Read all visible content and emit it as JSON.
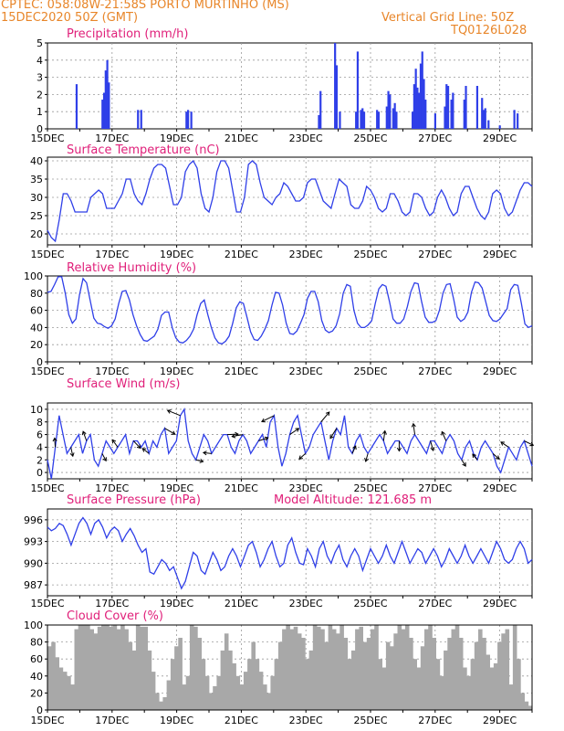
{
  "header": {
    "line1_left": "CPTEC:   058:08W-21:58S   PORTO MURTINHO (MS)",
    "line2_left": "15DEC2020 50Z (GMT)",
    "line2_right": "Vertical Grid Line: 50Z",
    "line3_right": "TQ0126L028",
    "accent_color": "#e8862a"
  },
  "colors": {
    "series": "#2f3fe8",
    "title": "#e0207a",
    "cloud": "#a8a8a8",
    "grid": "#9a9a9a",
    "wind_arrow": "#000000"
  },
  "x_tick_labels": [
    "15DEC",
    "17DEC",
    "19DEC",
    "21DEC",
    "23DEC",
    "25DEC",
    "27DEC",
    "29DEC"
  ],
  "chart_data": [
    {
      "type": "bar",
      "title": "Precipitation (mm/h)",
      "ylim": [
        0,
        5
      ],
      "yticks": [
        0,
        1,
        2,
        3,
        4,
        5
      ],
      "x_unit": "days since 15DEC 00Z",
      "series": [
        {
          "values": [
            [
              0.9,
              2.6
            ],
            [
              1.7,
              1.7
            ],
            [
              1.75,
              2.1
            ],
            [
              1.8,
              3.4
            ],
            [
              1.85,
              4.0
            ],
            [
              1.9,
              2.7
            ],
            [
              2.8,
              1.1
            ],
            [
              2.9,
              1.1
            ],
            [
              4.3,
              1.0
            ],
            [
              4.35,
              1.1
            ],
            [
              4.45,
              1.0
            ],
            [
              8.4,
              0.8
            ],
            [
              8.45,
              2.2
            ],
            [
              8.9,
              5.0
            ],
            [
              8.95,
              3.7
            ],
            [
              9.05,
              1.0
            ],
            [
              9.55,
              1.0
            ],
            [
              9.6,
              4.5
            ],
            [
              9.7,
              1.1
            ],
            [
              9.75,
              1.2
            ],
            [
              9.8,
              1.0
            ],
            [
              10.2,
              1.1
            ],
            [
              10.25,
              1.0
            ],
            [
              10.5,
              1.3
            ],
            [
              10.55,
              2.2
            ],
            [
              10.6,
              2.0
            ],
            [
              10.7,
              1.2
            ],
            [
              10.75,
              1.5
            ],
            [
              10.8,
              1.0
            ],
            [
              11.3,
              1.0
            ],
            [
              11.35,
              2.6
            ],
            [
              11.4,
              3.5
            ],
            [
              11.45,
              2.4
            ],
            [
              11.5,
              2.1
            ],
            [
              11.55,
              3.8
            ],
            [
              11.6,
              4.5
            ],
            [
              11.65,
              2.9
            ],
            [
              11.7,
              1.7
            ],
            [
              12.0,
              0.9
            ],
            [
              12.3,
              1.3
            ],
            [
              12.35,
              2.6
            ],
            [
              12.4,
              2.5
            ],
            [
              12.5,
              1.7
            ],
            [
              12.55,
              2.1
            ],
            [
              12.9,
              1.7
            ],
            [
              12.95,
              2.5
            ],
            [
              13.3,
              2.5
            ],
            [
              13.45,
              1.8
            ],
            [
              13.5,
              1.1
            ],
            [
              13.55,
              1.2
            ],
            [
              13.65,
              0.5
            ],
            [
              14.0,
              0.2
            ],
            [
              14.45,
              1.1
            ],
            [
              14.55,
              0.9
            ]
          ]
        }
      ]
    },
    {
      "type": "line",
      "title": "Surface Temperature (nC)",
      "ylim": [
        17,
        41
      ],
      "yticks": [
        20,
        25,
        30,
        35,
        40
      ],
      "series": [
        {
          "values": [
            21,
            19,
            18,
            24,
            31,
            31,
            29,
            26,
            26,
            26,
            26,
            30,
            31,
            32,
            31,
            27,
            27,
            27,
            29,
            31,
            35,
            35,
            31,
            29,
            28,
            31,
            35,
            38,
            39,
            39,
            38,
            33,
            28,
            28,
            30,
            37,
            39,
            40,
            38,
            31,
            27,
            26,
            30,
            37,
            40,
            40,
            38,
            32,
            26,
            26,
            30,
            39,
            40,
            39,
            34,
            30,
            29,
            28,
            30,
            31,
            34,
            33,
            31,
            29,
            29,
            30,
            34,
            35,
            35,
            32,
            29,
            28,
            27,
            31,
            35,
            34,
            33,
            28,
            27,
            27,
            29,
            33,
            32,
            30,
            27,
            26,
            27,
            31,
            31,
            29,
            26,
            25,
            26,
            31,
            31,
            30,
            27,
            25,
            26,
            30,
            32,
            30,
            27,
            25,
            26,
            31,
            33,
            33,
            30,
            27,
            25,
            24,
            26,
            31,
            32,
            31,
            27,
            25,
            26,
            29,
            32,
            34,
            34,
            33
          ]
        }
      ]
    },
    {
      "type": "line",
      "title": "Relative Humidity (%)",
      "ylim": [
        0,
        100
      ],
      "yticks": [
        0,
        20,
        40,
        60,
        80,
        100
      ],
      "series": [
        {
          "values": [
            81,
            82,
            90,
            99,
            99,
            80,
            55,
            45,
            50,
            78,
            97,
            92,
            71,
            51,
            45,
            44,
            41,
            39,
            42,
            50,
            68,
            82,
            83,
            72,
            55,
            42,
            32,
            25,
            24,
            27,
            30,
            38,
            54,
            58,
            58,
            40,
            28,
            23,
            22,
            25,
            30,
            38,
            55,
            68,
            72,
            55,
            40,
            28,
            22,
            21,
            24,
            30,
            45,
            63,
            70,
            68,
            52,
            35,
            26,
            25,
            30,
            38,
            48,
            66,
            81,
            80,
            66,
            45,
            33,
            32,
            36,
            45,
            55,
            74,
            82,
            82,
            70,
            48,
            37,
            34,
            36,
            42,
            56,
            80,
            90,
            88,
            60,
            45,
            40,
            40,
            43,
            48,
            68,
            85,
            90,
            88,
            70,
            50,
            45,
            45,
            50,
            64,
            82,
            92,
            91,
            70,
            52,
            46,
            46,
            48,
            60,
            80,
            90,
            91,
            73,
            52,
            47,
            50,
            58,
            81,
            93,
            92,
            86,
            70,
            54,
            48,
            47,
            50,
            56,
            62,
            84,
            90,
            89,
            68,
            44,
            40,
            42
          ]
        }
      ]
    },
    {
      "type": "line",
      "title": "Surface Wind (m/s)",
      "ylim": [
        -1,
        11
      ],
      "yticks": [
        0,
        2,
        4,
        6,
        8,
        10
      ],
      "series": [
        {
          "values": [
            2,
            -1,
            4,
            9,
            6,
            3,
            4,
            5,
            6,
            3,
            5,
            6,
            2,
            1,
            3,
            5,
            4,
            3,
            4,
            5,
            6,
            3,
            5,
            5,
            4,
            5,
            3,
            5,
            4,
            6,
            7,
            3,
            4,
            5,
            9,
            10,
            5,
            3,
            2,
            4,
            6,
            5,
            3,
            4,
            5,
            6,
            6,
            4,
            3,
            5,
            6,
            5,
            3,
            4,
            5,
            6,
            4,
            8,
            9,
            4,
            1,
            3,
            6,
            8,
            9,
            6,
            3,
            4,
            6,
            7,
            8,
            5,
            2,
            5,
            7,
            6,
            9,
            4,
            3,
            5,
            6,
            4,
            3,
            4,
            5,
            6,
            5,
            3,
            4,
            5,
            5,
            4,
            3,
            5,
            6,
            5,
            4,
            3,
            5,
            5,
            4,
            3,
            5,
            6,
            5,
            3,
            2,
            4,
            5,
            3,
            2,
            4,
            5,
            4,
            3,
            1,
            0,
            2,
            4,
            3,
            2,
            4,
            5,
            3,
            1
          ]
        }
      ]
    },
    {
      "type": "line",
      "title": "Surface Pressure (hPa)",
      "annotation": "Model Altitude: 121.685 m",
      "ylim": [
        985.5,
        997.5
      ],
      "yticks": [
        987,
        990,
        993,
        996
      ],
      "series": [
        {
          "values": [
            995,
            994.5,
            994.8,
            995.5,
            995.2,
            994,
            992.5,
            994,
            995.5,
            996.3,
            995.5,
            994,
            995.5,
            996,
            995,
            993.5,
            994.5,
            995,
            994.5,
            993,
            994,
            994.8,
            993.8,
            992.5,
            991.5,
            992,
            988.8,
            988.5,
            989.5,
            990.5,
            990,
            989,
            989.5,
            988,
            986.5,
            987.5,
            989.5,
            991.5,
            991,
            989,
            988.5,
            990,
            991.5,
            990.5,
            989,
            989.5,
            991,
            992,
            991,
            989.5,
            991,
            992.5,
            993,
            991.5,
            989.5,
            990.5,
            992,
            993,
            991,
            989.5,
            990,
            992.5,
            993.5,
            991.5,
            990,
            989.8,
            992,
            991,
            989.5,
            992,
            993,
            991,
            990,
            991.5,
            992.5,
            990.5,
            989.5,
            991,
            992,
            991,
            989,
            990.5,
            992,
            991,
            990,
            991,
            992.5,
            991,
            990,
            991.5,
            993,
            991.5,
            990,
            991,
            992,
            991.5,
            990,
            991,
            992,
            991,
            989.5,
            990.5,
            992,
            991,
            990,
            991,
            992.5,
            991,
            990,
            991,
            992,
            991,
            990,
            991.5,
            993,
            992,
            990.5,
            990,
            990.5,
            992,
            993,
            992,
            990,
            990.5
          ]
        }
      ]
    },
    {
      "type": "area",
      "title": "Cloud Cover (%)",
      "ylim": [
        0,
        100
      ],
      "yticks": [
        0,
        20,
        40,
        60,
        80,
        100
      ],
      "series": [
        {
          "values": [
            75,
            80,
            62,
            50,
            45,
            40,
            30,
            95,
            100,
            100,
            100,
            95,
            90,
            98,
            100,
            100,
            98,
            100,
            95,
            100,
            95,
            80,
            70,
            100,
            98,
            98,
            70,
            45,
            20,
            10,
            15,
            35,
            60,
            75,
            85,
            30,
            40,
            100,
            98,
            85,
            60,
            40,
            20,
            28,
            40,
            70,
            90,
            70,
            55,
            40,
            30,
            45,
            60,
            80,
            60,
            45,
            30,
            20,
            40,
            60,
            80,
            95,
            100,
            95,
            98,
            90,
            85,
            60,
            70,
            100,
            98,
            95,
            80,
            100,
            95,
            90,
            100,
            85,
            60,
            70,
            95,
            98,
            80,
            85,
            95,
            100,
            60,
            50,
            80,
            75,
            90,
            100,
            95,
            100,
            85,
            60,
            50,
            75,
            95,
            100,
            85,
            60,
            40,
            70,
            85,
            95,
            100,
            85,
            50,
            40,
            60,
            80,
            95,
            85,
            65,
            50,
            55,
            80,
            90,
            95,
            30,
            100,
            60,
            20,
            10,
            5
          ]
        }
      ]
    }
  ]
}
